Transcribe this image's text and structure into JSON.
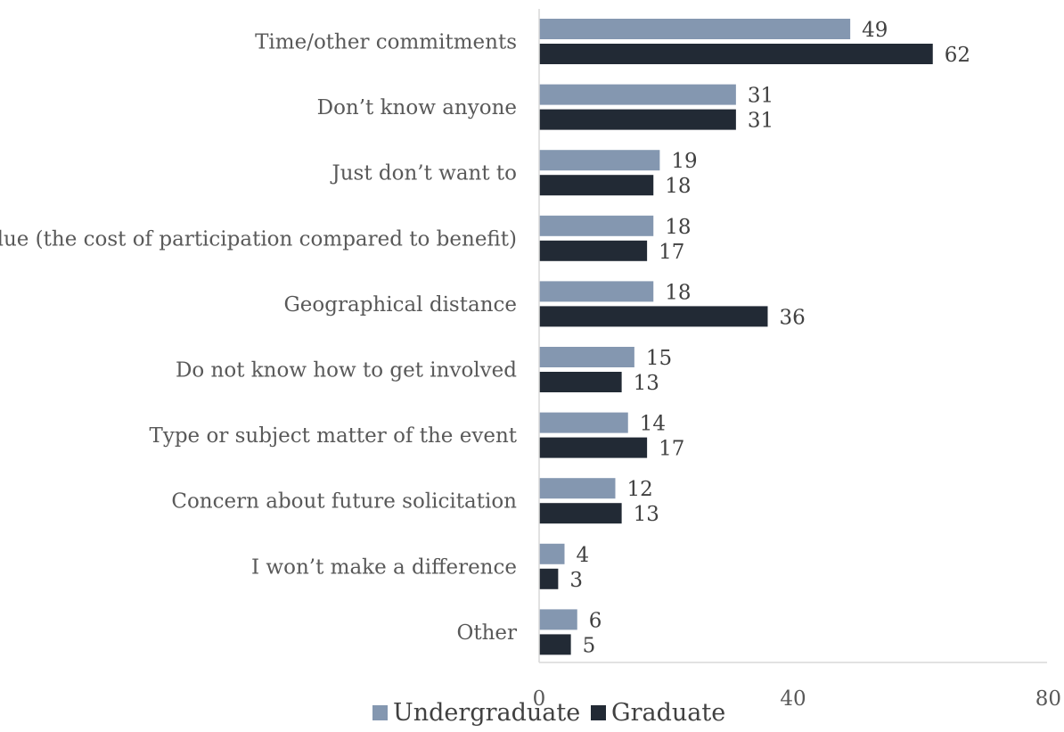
{
  "chart_data": {
    "type": "bar",
    "orientation": "horizontal",
    "categories": [
      "Time/other commitments",
      "Don’t know anyone",
      "Just don’t want to",
      "Value (the cost of participation compared to benefit)",
      "Geographical distance",
      "Do not know how to get involved",
      "Type or subject matter of the event",
      "Concern about future solicitation",
      "I won’t make a difference",
      "Other"
    ],
    "series": [
      {
        "name": "Undergraduate",
        "color": "#8497b0",
        "values": [
          49,
          31,
          19,
          18,
          18,
          15,
          14,
          12,
          4,
          6
        ]
      },
      {
        "name": "Graduate",
        "color": "#222a35",
        "values": [
          62,
          31,
          18,
          17,
          36,
          13,
          17,
          13,
          3,
          5
        ]
      }
    ],
    "xlim": [
      0,
      80
    ],
    "xticks": [
      "0",
      "40",
      "80"
    ],
    "title": "",
    "xlabel": "",
    "ylabel": "",
    "grid": false,
    "legend_position": "bottom-left"
  }
}
